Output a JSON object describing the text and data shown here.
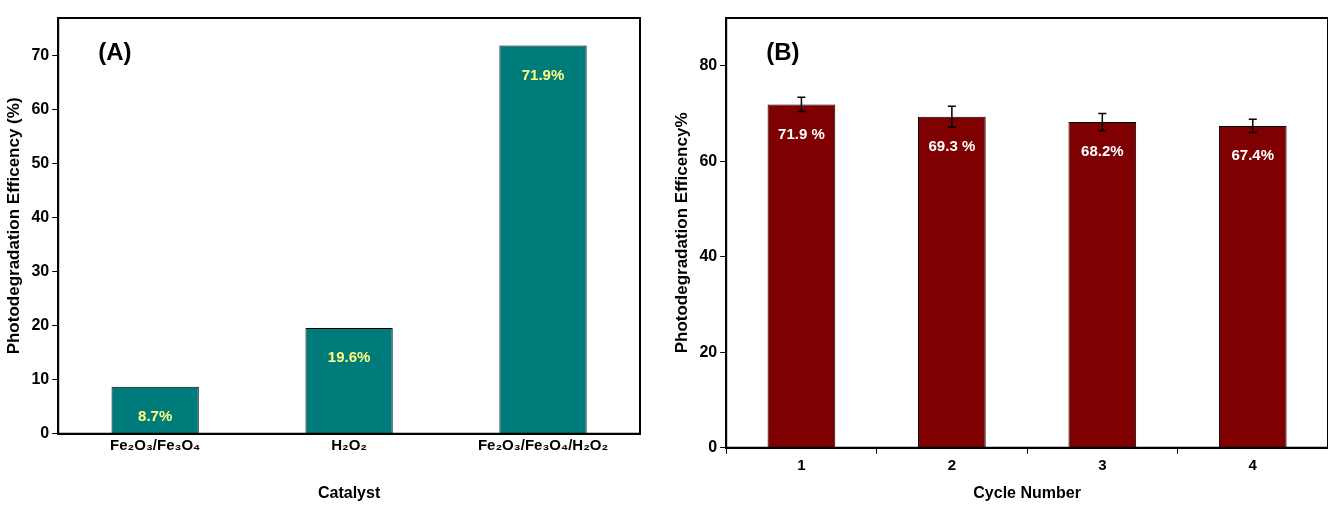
{
  "chart_data": [
    {
      "type": "bar",
      "annotations": [
        "(A)"
      ],
      "xlabel": "Catalyst",
      "ylabel": "Photodegradation Efficency (%)",
      "categories": [
        "Fe₂O₃/Fe₃O₄",
        "H₂O₂",
        "Fe₂O₃/Fe₃O₄/H₂O₂"
      ],
      "values": [
        8.7,
        19.6,
        71.9
      ],
      "color": "#007b7b",
      "value_labels": [
        "8.7%",
        "19.6%",
        "71.9%"
      ],
      "ylim": [
        0,
        77
      ],
      "yticks": [
        0,
        10,
        20,
        30,
        40,
        50,
        60,
        70
      ]
    },
    {
      "type": "bar",
      "annotations": [
        "(B)"
      ],
      "xlabel": "Cycle Number",
      "ylabel": "Photodegradation Efficency%",
      "categories": [
        "1",
        "2",
        "3",
        "4"
      ],
      "values": [
        71.9,
        69.3,
        68.2,
        67.4
      ],
      "color": "#7f0000",
      "errors": [
        1.5,
        2.2,
        1.8,
        1.4
      ],
      "value_labels": [
        "71.9 %",
        "69.3 %",
        "68.2%",
        "67.4%"
      ],
      "ylim": [
        0,
        90
      ],
      "yticks": [
        0,
        20,
        40,
        60,
        80
      ]
    }
  ]
}
